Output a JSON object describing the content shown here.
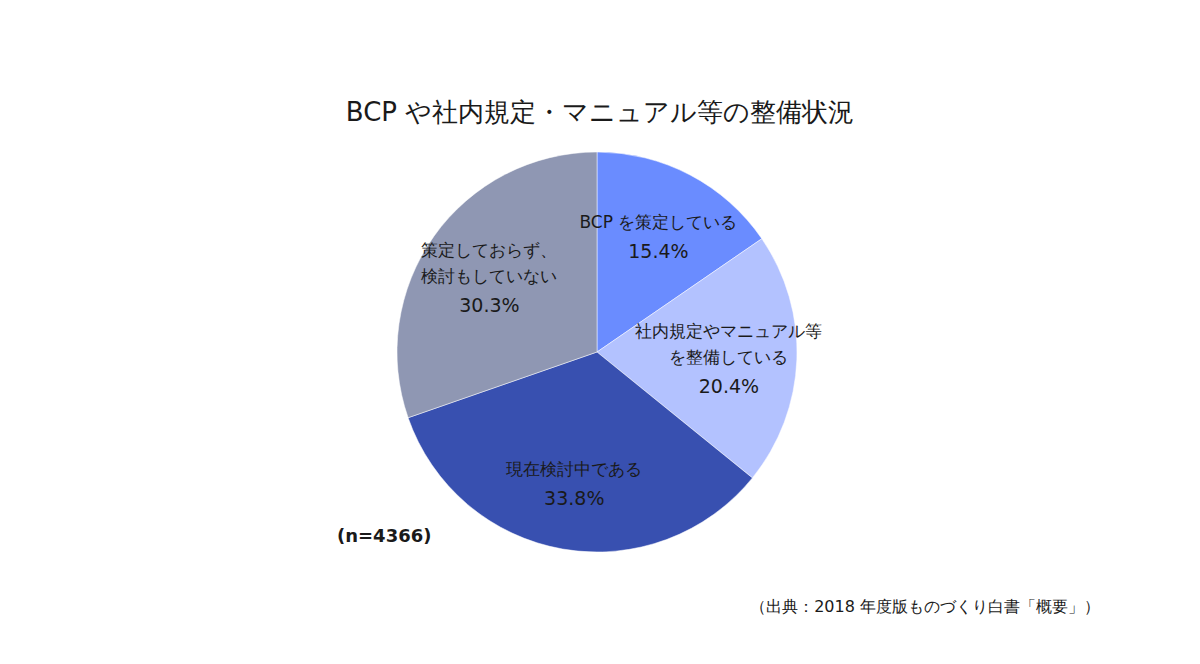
{
  "chart_data": {
    "type": "pie",
    "title": "BCP や社内規定・マニュアル等の整備状況",
    "categories": [
      "BCP を策定している",
      "社内規定やマニュアル等\nを整備している",
      "現在検討中である",
      "策定しておらず、\n検討もしていない"
    ],
    "values": [
      15.4,
      20.4,
      33.8,
      30.3
    ],
    "value_labels": [
      "15.4%",
      "20.4%",
      "33.8%",
      "30.3%"
    ],
    "colors": [
      "#6a8cff",
      "#b3c2ff",
      "#3850b0",
      "#8f97b3"
    ],
    "data_labels": true,
    "annotation": "(n=4366)",
    "source": "（出典：2018 年度版ものづくり白書「概要」）"
  }
}
